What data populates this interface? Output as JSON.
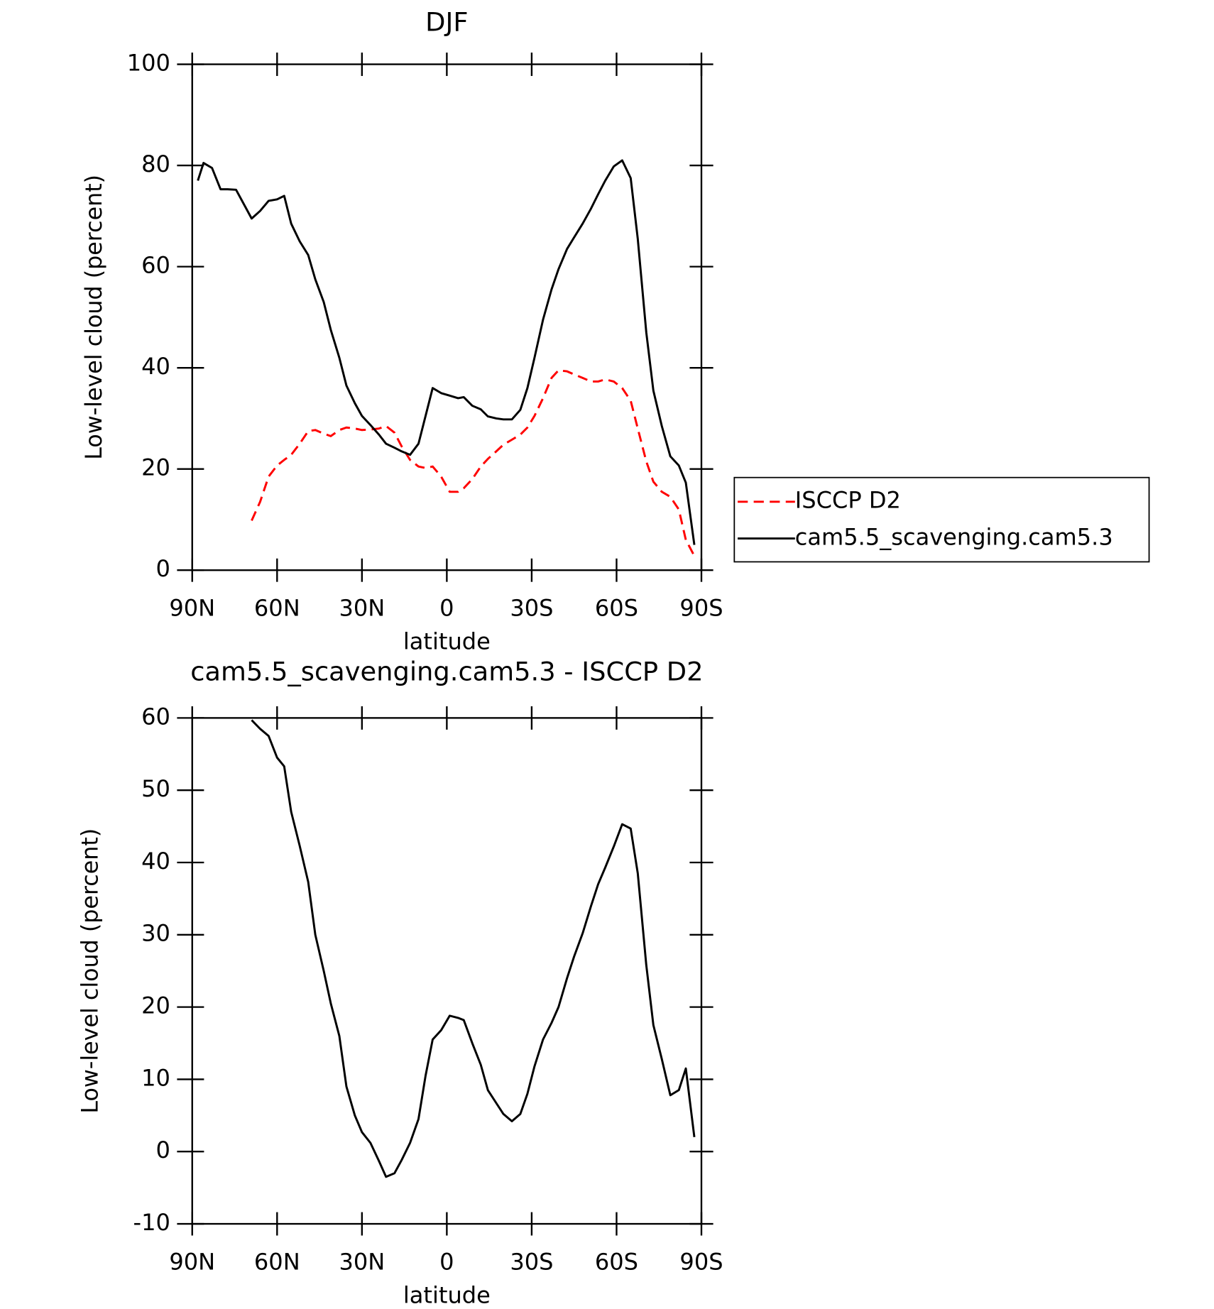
{
  "chart_data": [
    {
      "type": "line",
      "title": "DJF",
      "x_label": "latitude",
      "y_label": "Low-level cloud (percent)",
      "x": [
        88,
        86,
        83,
        80,
        77.5,
        74.5,
        69,
        66,
        63,
        60,
        57.5,
        55,
        52,
        49,
        46.5,
        43.5,
        41,
        38,
        35.5,
        32.5,
        30,
        27,
        24,
        21.5,
        18.5,
        16,
        13,
        10,
        7.5,
        5,
        2,
        -1,
        -4,
        -6,
        -9,
        -12,
        -14.5,
        -17.5,
        -20,
        -23,
        -26,
        -28.5,
        -31,
        -34,
        -37,
        -39.5,
        -42.5,
        -45,
        -48,
        -51,
        -53.5,
        -56,
        -59,
        -62,
        -65,
        -67.5,
        -70.5,
        -73,
        -76,
        -79,
        -82,
        -84.5,
        -87.5
      ],
      "series": [
        {
          "name": "ISCCP D2",
          "color": "#ff0000",
          "style": "dashed",
          "values": [
            null,
            null,
            null,
            null,
            null,
            null,
            9.8,
            13.5,
            18.5,
            20.7,
            21.8,
            22.8,
            25,
            27.5,
            27.7,
            27,
            26.5,
            27.7,
            28.2,
            28,
            27.7,
            27.8,
            28,
            28.5,
            27.2,
            24.5,
            21.8,
            20.5,
            20.2,
            20.5,
            18.5,
            15.5,
            15.5,
            16.2,
            18,
            20.5,
            22,
            23.5,
            24.8,
            25.8,
            26.8,
            28.2,
            30.5,
            34,
            38,
            39.5,
            39.3,
            38.7,
            38,
            37.3,
            37.3,
            37.7,
            37.3,
            36,
            33.5,
            28,
            21.5,
            17.5,
            15.5,
            14.5,
            12,
            6,
            2.8
          ]
        },
        {
          "name": "cam5.5_scavenging.cam5.3",
          "color": "#000000",
          "style": "solid",
          "values": [
            77,
            80.5,
            79.5,
            75.3,
            75.3,
            75.2,
            69.5,
            71,
            73,
            73.3,
            74,
            68.5,
            65,
            62.3,
            57.5,
            53,
            47.5,
            42,
            36.5,
            33,
            30.5,
            28.7,
            26.8,
            25,
            24.2,
            23.5,
            22.8,
            25,
            30.5,
            36,
            35,
            34.5,
            34,
            34.2,
            32.5,
            31.8,
            30.4,
            30,
            29.8,
            29.8,
            31.7,
            36,
            42,
            49.5,
            55.5,
            59.5,
            63.5,
            65.8,
            68.5,
            71.5,
            74.3,
            77,
            79.8,
            81,
            77.5,
            65.5,
            47,
            35.5,
            28.5,
            22.5,
            20.7,
            17.3,
            5
          ]
        }
      ],
      "xlim": [
        90,
        -90
      ],
      "xticks": [
        {
          "value": 90,
          "label": "90N"
        },
        {
          "value": 60,
          "label": "60N"
        },
        {
          "value": 30,
          "label": "30N"
        },
        0,
        {
          "value": -30,
          "label": "30S"
        },
        {
          "value": -60,
          "label": "60S"
        },
        {
          "value": -90,
          "label": "90S"
        }
      ],
      "ylim": [
        0,
        100
      ],
      "yticks": [
        0,
        20,
        40,
        60,
        80,
        100
      ],
      "legend": "right"
    },
    {
      "type": "line",
      "title": "cam5.5_scavenging.cam5.3 - ISCCP D2",
      "x_label": "latitude",
      "y_label": "Low-level cloud (percent)",
      "x": [
        88,
        86,
        83,
        80,
        77.5,
        74.5,
        69,
        66,
        63,
        60,
        57.5,
        55,
        52,
        49,
        46.5,
        43.5,
        41,
        38,
        35.5,
        32.5,
        30,
        27,
        24,
        21.5,
        18.5,
        16,
        13,
        10,
        7.5,
        5,
        2,
        -1,
        -4,
        -6,
        -9,
        -12,
        -14.5,
        -17.5,
        -20,
        -23,
        -26,
        -28.5,
        -31,
        -34,
        -37,
        -39.5,
        -42.5,
        -45,
        -48,
        -51,
        -53.5,
        -56,
        -59,
        -62,
        -65,
        -67.5,
        -70.5,
        -73,
        -76,
        -79,
        -82,
        -84.5,
        -87.5
      ],
      "color": "#000000",
      "values": [
        null,
        null,
        null,
        null,
        null,
        null,
        59.7,
        58.5,
        57.5,
        54.5,
        53.3,
        47,
        42.3,
        37.3,
        30,
        25,
        20.5,
        16,
        9,
        5,
        2.7,
        1.2,
        -1.3,
        -3.5,
        -3,
        -1.2,
        1.2,
        4.5,
        10.5,
        15.5,
        16.8,
        18.8,
        18.5,
        18.2,
        15,
        12,
        8.5,
        6.7,
        5.2,
        4.2,
        5.2,
        8,
        11.8,
        15.5,
        17.8,
        20,
        24,
        27,
        30.2,
        34,
        37,
        39.3,
        42.2,
        45.3,
        44.7,
        38.5,
        25.8,
        17.5,
        12.8,
        7.8,
        8.5,
        11.5,
        2
      ],
      "xlim": [
        90,
        -90
      ],
      "xticks": [
        {
          "value": 90,
          "label": "90N"
        },
        {
          "value": 60,
          "label": "60N"
        },
        {
          "value": 30,
          "label": "30N"
        },
        0,
        {
          "value": -30,
          "label": "30S"
        },
        {
          "value": -60,
          "label": "60S"
        },
        {
          "value": -90,
          "label": "90S"
        }
      ],
      "ylim": [
        -10,
        60
      ],
      "yticks": [
        -10,
        0,
        10,
        20,
        30,
        40,
        50,
        60
      ]
    }
  ]
}
